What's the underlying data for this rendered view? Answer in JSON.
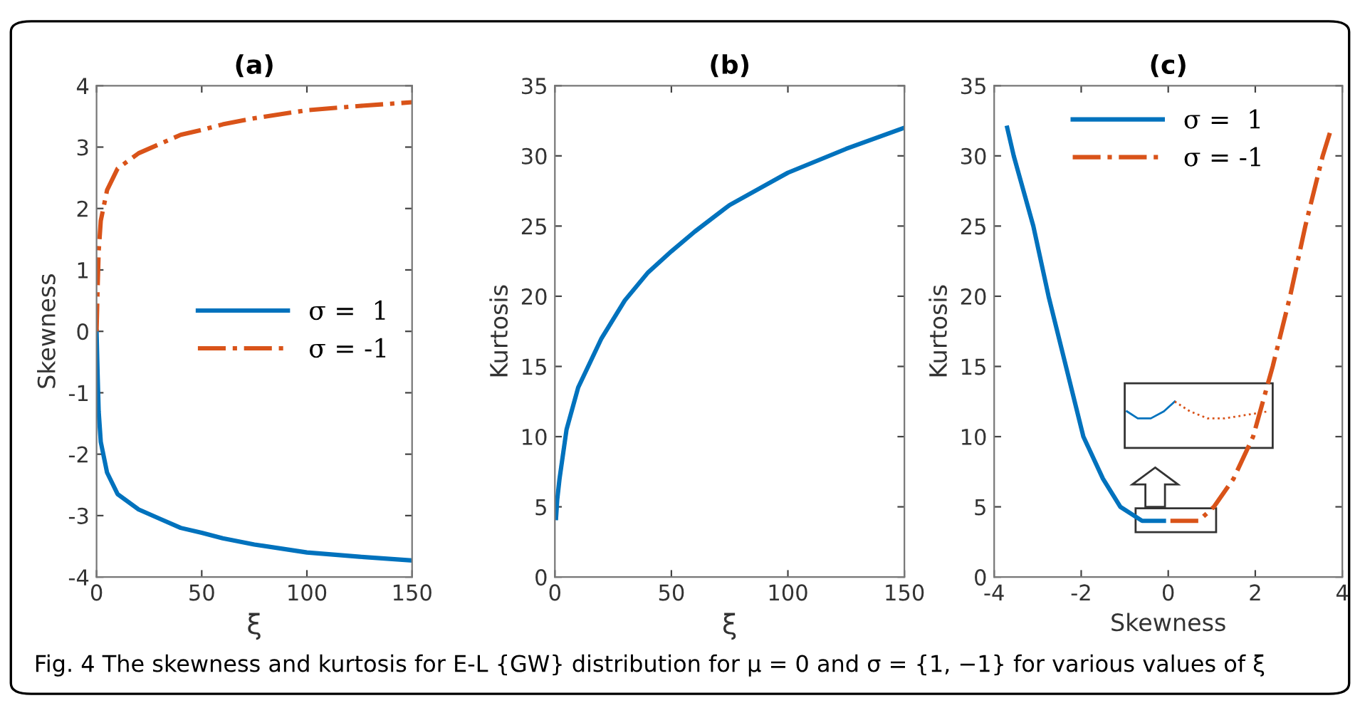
{
  "chart_data": [
    {
      "type": "line",
      "title": "(a)",
      "xlabel": "ξ",
      "ylabel": "Skewness",
      "xlim": [
        0,
        150
      ],
      "ylim": [
        -4,
        4
      ],
      "xticks": [
        0,
        50,
        100,
        150
      ],
      "yticks": [
        -4,
        -3,
        -2,
        -1,
        0,
        1,
        2,
        3,
        4
      ],
      "legend": "right",
      "grid": false,
      "series": [
        {
          "name": "σ =  1",
          "color": "#0072bd",
          "line_style": "solid",
          "x": [
            0,
            0.5,
            1,
            2,
            5,
            10,
            20,
            30,
            40,
            50,
            60,
            75,
            100,
            125,
            150
          ],
          "values": [
            0,
            -0.7,
            -1.3,
            -1.8,
            -2.3,
            -2.65,
            -2.9,
            -3.05,
            -3.2,
            -3.28,
            -3.37,
            -3.47,
            -3.6,
            -3.67,
            -3.73
          ]
        },
        {
          "name": "σ = -1",
          "color": "#d95319",
          "line_style": "dashed",
          "x": [
            0,
            0.5,
            1,
            2,
            5,
            10,
            20,
            30,
            40,
            50,
            60,
            75,
            100,
            125,
            150
          ],
          "values": [
            0,
            0.7,
            1.3,
            1.8,
            2.3,
            2.65,
            2.9,
            3.05,
            3.2,
            3.28,
            3.37,
            3.47,
            3.6,
            3.67,
            3.73
          ]
        }
      ]
    },
    {
      "type": "line",
      "title": "(b)",
      "xlabel": "ξ",
      "ylabel": "Kurtosis",
      "xlim": [
        0,
        150
      ],
      "ylim": [
        0,
        35
      ],
      "xticks": [
        0,
        50,
        100,
        150
      ],
      "yticks": [
        0,
        5,
        10,
        15,
        20,
        25,
        30,
        35
      ],
      "grid": false,
      "series": [
        {
          "color": "#0072bd",
          "line_style": "solid",
          "x": [
            0.5,
            1,
            2,
            5,
            10,
            20,
            30,
            40,
            50,
            60,
            75,
            100,
            125,
            150
          ],
          "values": [
            4.2,
            5.5,
            7,
            10.5,
            13.5,
            17,
            19.7,
            21.7,
            23.2,
            24.6,
            26.5,
            28.8,
            30.5,
            32
          ]
        }
      ]
    },
    {
      "type": "line",
      "title": "(c)",
      "xlabel": "Skewness",
      "ylabel": "Kurtosis",
      "xlim": [
        -4,
        4
      ],
      "ylim": [
        0,
        35
      ],
      "xticks": [
        -4,
        -2,
        0,
        2,
        4
      ],
      "yticks": [
        0,
        5,
        10,
        15,
        20,
        25,
        30,
        35
      ],
      "legend": "top",
      "grid": false,
      "series": [
        {
          "name": "σ =  1",
          "color": "#0072bd",
          "line_style": "solid",
          "x": [
            -3.7,
            -3.55,
            -3.1,
            -2.75,
            -2.35,
            -1.95,
            -1.5,
            -1.1,
            -0.6,
            -0.1
          ],
          "values": [
            32,
            30,
            25,
            20,
            15,
            10,
            7,
            5,
            4,
            4
          ]
        },
        {
          "name": "σ = -1",
          "color": "#d95319",
          "line_style": "dashed",
          "x": [
            0.05,
            0.7,
            1.05,
            1.5,
            1.95,
            2.4,
            2.8,
            3.15,
            3.55,
            3.75
          ],
          "values": [
            4,
            4,
            5,
            7,
            10,
            15,
            20,
            25,
            30,
            32
          ]
        }
      ]
    },
    {
      "type": "other",
      "annotations": [
        "Fig. 4 The skewness and kurtosis for E-L {GW} distribution for μ = 0 and σ = {1, −1} for various values of ξ"
      ]
    }
  ]
}
